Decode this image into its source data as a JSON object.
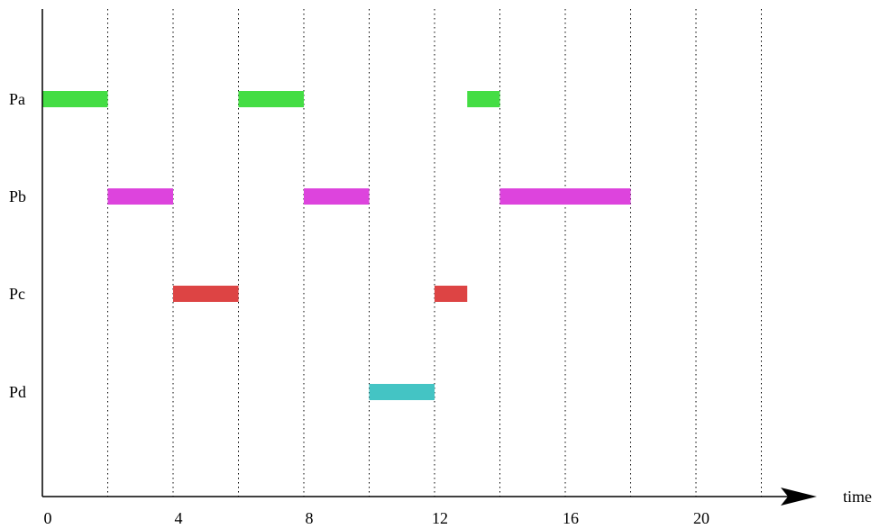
{
  "chart_data": {
    "type": "gantt",
    "x_label": "time",
    "x_ticks": [
      0,
      4,
      8,
      12,
      16,
      20
    ],
    "gridlines": [
      2,
      4,
      6,
      8,
      10,
      12,
      14,
      16,
      18,
      20,
      22
    ],
    "x_range": [
      0,
      24
    ],
    "rows": [
      {
        "name": "Pa",
        "color": "#44dd44",
        "intervals": [
          [
            0,
            2
          ],
          [
            6,
            8
          ],
          [
            13,
            14
          ]
        ]
      },
      {
        "name": "Pb",
        "color": "#dd44dd",
        "intervals": [
          [
            2,
            4
          ],
          [
            8,
            10
          ],
          [
            14,
            18
          ]
        ]
      },
      {
        "name": "Pc",
        "color": "#dd4444",
        "intervals": [
          [
            4,
            6
          ],
          [
            12,
            13
          ]
        ]
      },
      {
        "name": "Pd",
        "color": "#44c4c4",
        "intervals": [
          [
            10,
            12
          ]
        ]
      }
    ]
  }
}
